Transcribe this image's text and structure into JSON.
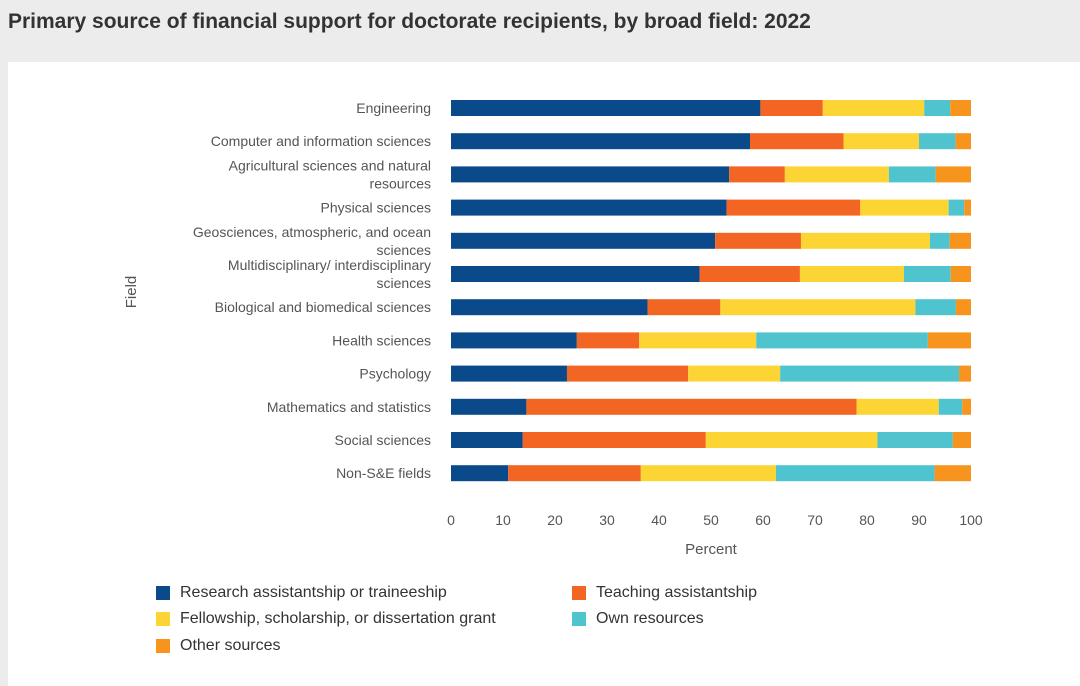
{
  "title": "Primary source of financial support for doctorate recipients, by broad field: 2022",
  "chart_data": {
    "type": "bar",
    "orientation": "horizontal",
    "stacked": true,
    "xlabel": "Percent",
    "ylabel": "Field",
    "xlim": [
      0,
      100
    ],
    "xticks": [
      "0",
      "10",
      "20",
      "30",
      "40",
      "50",
      "60",
      "70",
      "80",
      "90",
      "100"
    ],
    "grid": false,
    "legend_position": "bottom",
    "categories": [
      "Engineering",
      "Computer and information sciences",
      "Agricultural sciences and natural resources",
      "Physical sciences",
      "Geosciences, atmospheric, and ocean sciences",
      "Multidisciplinary/ interdisciplinary sciences",
      "Biological and biomedical sciences",
      "Health sciences",
      "Psychology",
      "Mathematics and statistics",
      "Social sciences",
      "Non-S&E fields"
    ],
    "category_lines": [
      [
        "Engineering"
      ],
      [
        "Computer and information sciences"
      ],
      [
        "Agricultural sciences and natural",
        "resources"
      ],
      [
        "Physical sciences"
      ],
      [
        "Geosciences, atmospheric, and ocean",
        "sciences"
      ],
      [
        "Multidisciplinary/ interdisciplinary",
        "sciences"
      ],
      [
        "Biological and biomedical sciences"
      ],
      [
        "Health sciences"
      ],
      [
        "Psychology"
      ],
      [
        "Mathematics and statistics"
      ],
      [
        "Social sciences"
      ],
      [
        "Non-S&E fields"
      ]
    ],
    "series": [
      {
        "name": "Research assistantship or traineeship",
        "color": "#0a4a8a",
        "values": [
          59.5,
          57.5,
          53.5,
          53,
          50.8,
          47.8,
          37.8,
          24.2,
          22.3,
          14.5,
          13.8,
          11
        ]
      },
      {
        "name": "Teaching assistantship",
        "color": "#f26522",
        "values": [
          12,
          18,
          10.7,
          25.7,
          16.5,
          19.3,
          14,
          12,
          23.3,
          63.5,
          35.2,
          25.5
        ]
      },
      {
        "name": "Fellowship, scholarship, or dissertation grant",
        "color": "#fcd535",
        "values": [
          19.5,
          14.5,
          20,
          17,
          24.8,
          20,
          37.5,
          22.5,
          17.7,
          15.8,
          33,
          26
        ]
      },
      {
        "name": "Own resources",
        "color": "#4fc4cf",
        "values": [
          5,
          7,
          9,
          3,
          3.8,
          9,
          7.8,
          33,
          34.4,
          4.5,
          14.5,
          30.5
        ]
      },
      {
        "name": "Other sources",
        "color": "#f7941d",
        "values": [
          4,
          3,
          6.8,
          1.3,
          4.1,
          3.9,
          2.9,
          8.3,
          2.3,
          1.7,
          3.5,
          7
        ]
      }
    ]
  }
}
